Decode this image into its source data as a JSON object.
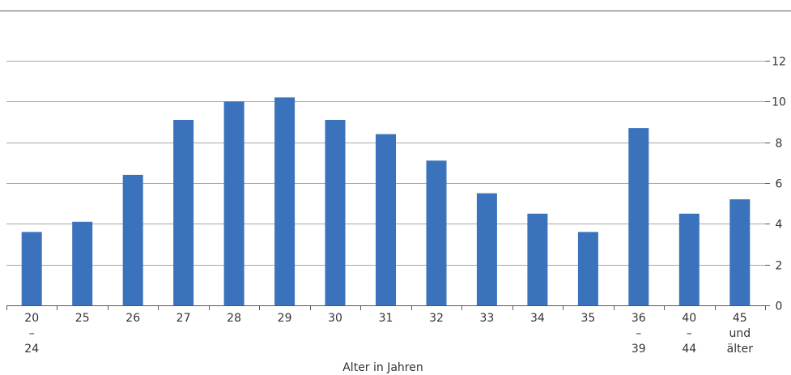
{
  "chart_data": {
    "type": "bar",
    "title": "",
    "xlabel": "Alter in Jahren",
    "ylabel": "",
    "categories": [
      [
        "20",
        "–",
        "24"
      ],
      [
        "25"
      ],
      [
        "26"
      ],
      [
        "27"
      ],
      [
        "28"
      ],
      [
        "29"
      ],
      [
        "30"
      ],
      [
        "31"
      ],
      [
        "32"
      ],
      [
        "33"
      ],
      [
        "34"
      ],
      [
        "35"
      ],
      [
        "36",
        "–",
        "39"
      ],
      [
        "40",
        "–",
        "44"
      ],
      [
        "45",
        "und",
        "älter"
      ]
    ],
    "values": [
      3.6,
      4.1,
      6.4,
      9.1,
      10.0,
      10.2,
      9.1,
      8.4,
      7.1,
      5.5,
      4.5,
      3.6,
      8.7,
      4.5,
      5.2
    ],
    "ylim": [
      0,
      12
    ],
    "yticks": [
      0,
      2,
      4,
      6,
      8,
      10,
      12
    ],
    "y_axis_side": "right",
    "grid": true,
    "colors": {
      "bar": "#3a73bb",
      "grid": "#a6a6a6",
      "axis": "#595959"
    }
  }
}
